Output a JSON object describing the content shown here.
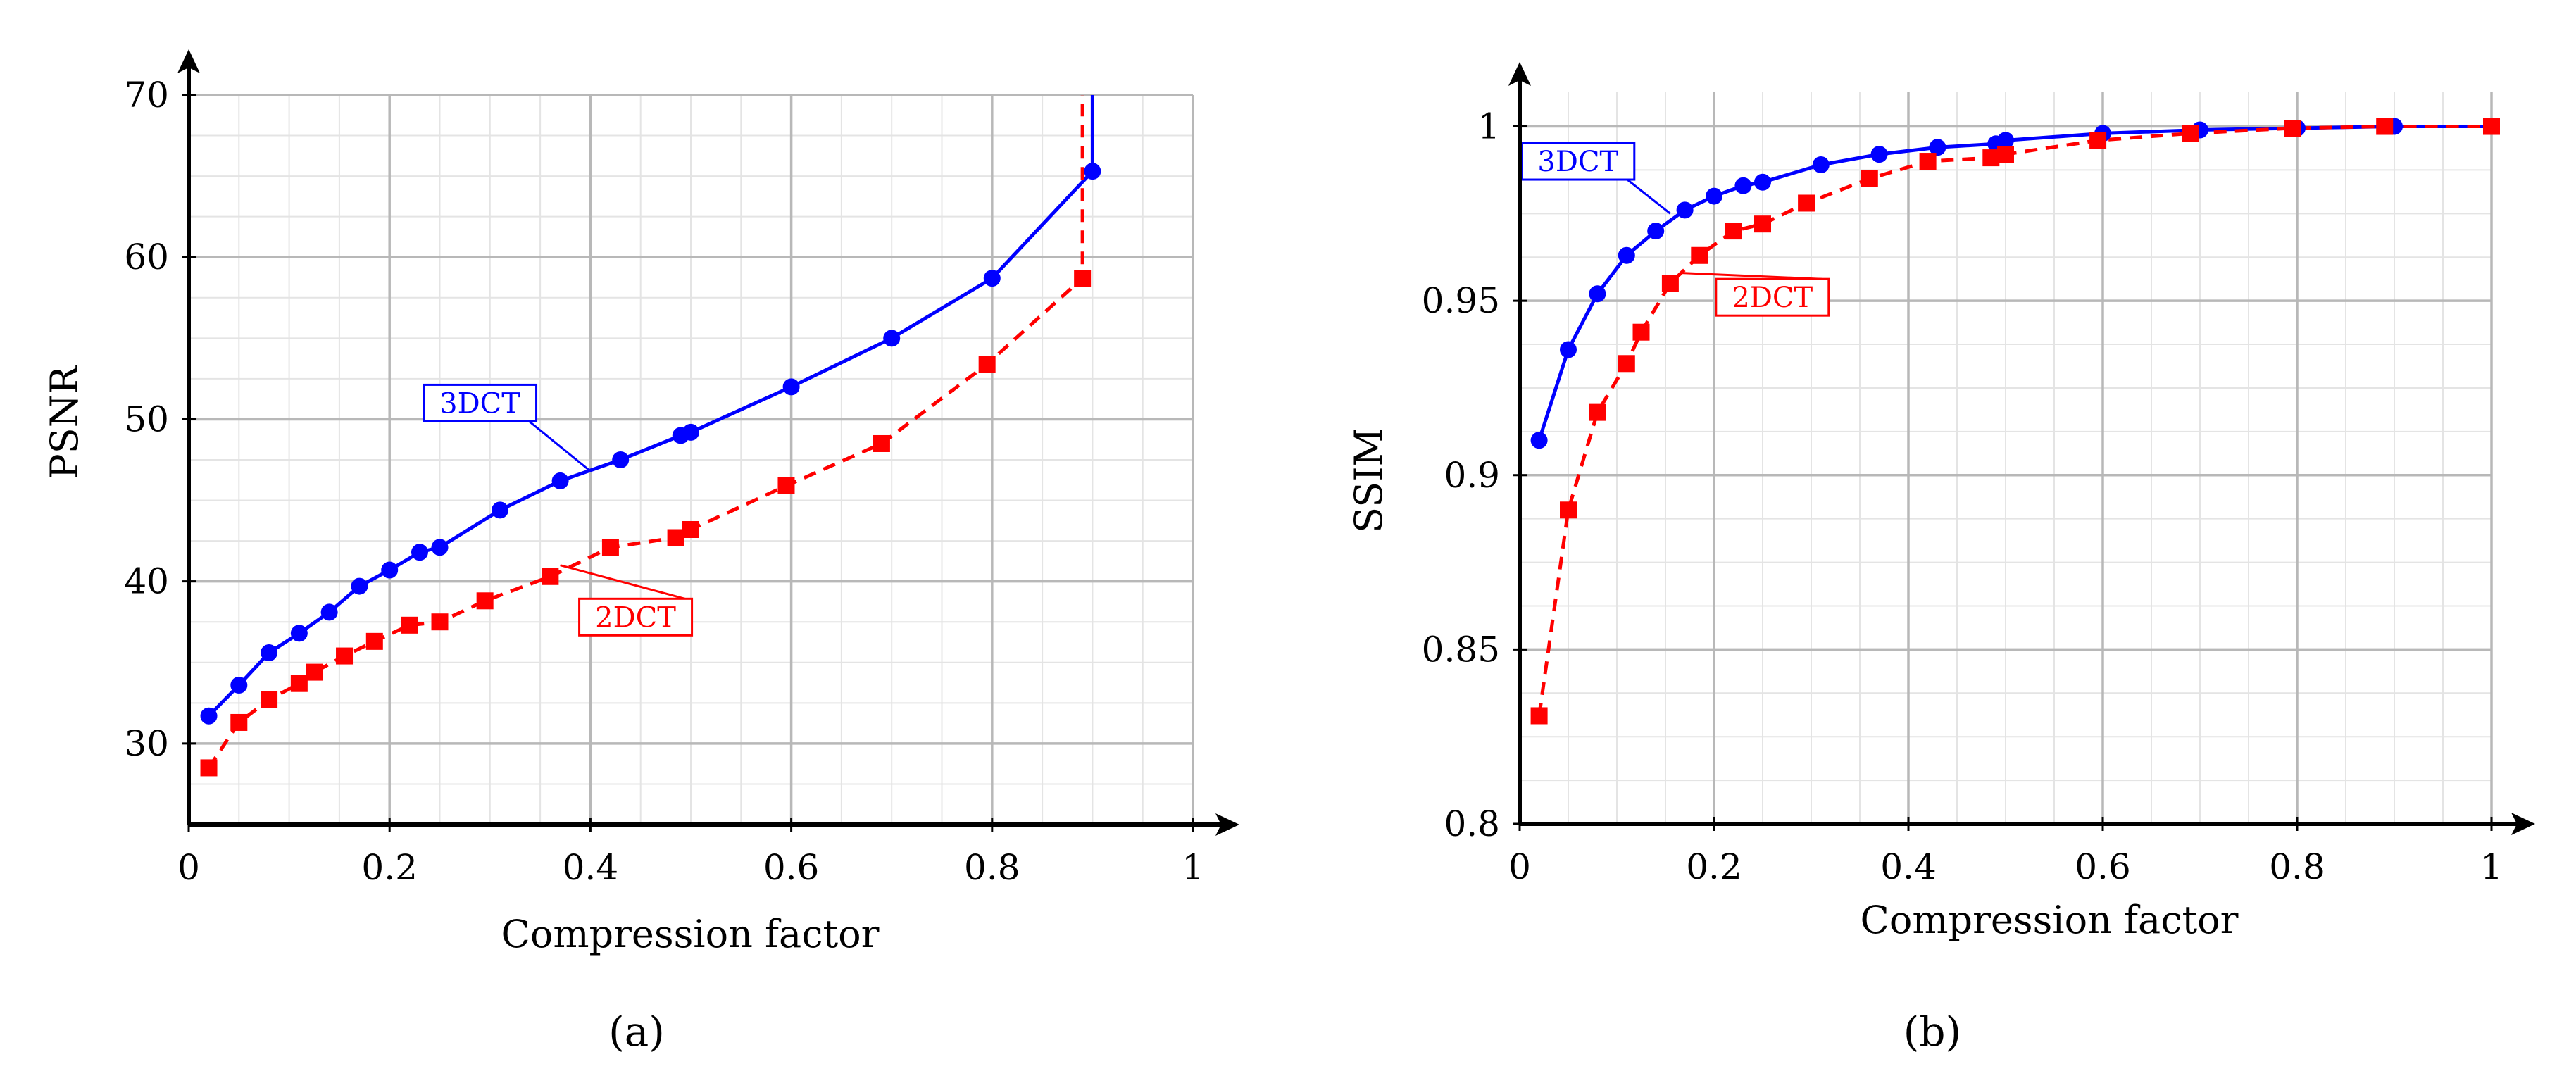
{
  "chart_data": [
    {
      "panel": "a",
      "type": "line",
      "panel_label": "(a)",
      "xlabel": "Compression factor",
      "ylabel": "PSNR",
      "xlim": [
        0,
        1
      ],
      "ylim": [
        25,
        70
      ],
      "xticks": [
        0,
        0.2,
        0.4,
        0.6,
        0.8,
        1
      ],
      "xtick_labels": [
        "0",
        "0.2",
        "0.4",
        "0.6",
        "0.8",
        "1"
      ],
      "yticks": [
        30,
        40,
        50,
        60,
        70
      ],
      "ytick_labels": [
        "30",
        "40",
        "50",
        "60",
        "70"
      ],
      "grid": true,
      "series": [
        {
          "name": "3DCT",
          "color": "#0000ff",
          "line_style": "solid",
          "marker": "circle",
          "x": [
            0.02,
            0.05,
            0.08,
            0.11,
            0.14,
            0.17,
            0.2,
            0.23,
            0.25,
            0.31,
            0.37,
            0.43,
            0.49,
            0.5,
            0.6,
            0.7,
            0.8,
            0.9
          ],
          "y": [
            31.7,
            33.6,
            35.6,
            36.8,
            38.1,
            39.7,
            40.7,
            41.8,
            42.1,
            44.4,
            46.2,
            47.5,
            49.0,
            49.2,
            52.0,
            55.0,
            58.7,
            65.3
          ],
          "tail": {
            "x": [
              0.9,
              0.9
            ],
            "y": [
              65.3,
              70
            ]
          }
        },
        {
          "name": "2DCT",
          "color": "#ff0000",
          "line_style": "dashed",
          "marker": "square",
          "x": [
            0.02,
            0.05,
            0.08,
            0.11,
            0.125,
            0.155,
            0.185,
            0.22,
            0.25,
            0.295,
            0.36,
            0.42,
            0.485,
            0.5,
            0.595,
            0.69,
            0.795,
            0.89
          ],
          "y": [
            28.5,
            31.3,
            32.7,
            33.7,
            34.4,
            35.4,
            36.3,
            37.3,
            37.5,
            38.8,
            40.3,
            42.1,
            42.7,
            43.2,
            45.9,
            48.5,
            53.4,
            58.7
          ],
          "tail": {
            "x": [
              0.89,
              0.89
            ],
            "y": [
              58.7,
              70
            ]
          }
        }
      ],
      "annotations": [
        {
          "text": "3DCT",
          "series": "3DCT",
          "anchor_x": 0.4,
          "anchor_y": 46.8,
          "label_x": 0.29,
          "label_y": 51.0
        },
        {
          "text": "2DCT",
          "series": "2DCT",
          "anchor_x": 0.37,
          "anchor_y": 41.0,
          "label_x": 0.445,
          "label_y": 37.8
        }
      ]
    },
    {
      "panel": "b",
      "type": "line",
      "panel_label": "(b)",
      "xlabel": "Compression factor",
      "ylabel": "SSIM",
      "xlim": [
        0,
        1
      ],
      "ylim": [
        0.8,
        1.01
      ],
      "xticks": [
        0,
        0.2,
        0.4,
        0.6,
        0.8,
        1
      ],
      "xtick_labels": [
        "0",
        "0.2",
        "0.4",
        "0.6",
        "0.8",
        "1"
      ],
      "yticks": [
        0.8,
        0.85,
        0.9,
        0.95,
        1
      ],
      "ytick_labels": [
        "0.8",
        "0.85",
        "0.9",
        "0.95",
        "1"
      ],
      "grid": true,
      "series": [
        {
          "name": "3DCT",
          "color": "#0000ff",
          "line_style": "solid",
          "marker": "circle",
          "x": [
            0.02,
            0.05,
            0.08,
            0.11,
            0.14,
            0.17,
            0.2,
            0.23,
            0.25,
            0.31,
            0.37,
            0.43,
            0.49,
            0.5,
            0.6,
            0.7,
            0.8,
            0.9,
            1.0
          ],
          "y": [
            0.91,
            0.936,
            0.952,
            0.963,
            0.97,
            0.976,
            0.98,
            0.983,
            0.984,
            0.989,
            0.992,
            0.994,
            0.995,
            0.996,
            0.998,
            0.999,
            0.9995,
            1.0,
            1.0
          ]
        },
        {
          "name": "2DCT",
          "color": "#ff0000",
          "line_style": "dashed",
          "marker": "square",
          "x": [
            0.02,
            0.05,
            0.08,
            0.11,
            0.125,
            0.155,
            0.185,
            0.22,
            0.25,
            0.295,
            0.36,
            0.42,
            0.485,
            0.5,
            0.595,
            0.69,
            0.795,
            0.89,
            1.0
          ],
          "y": [
            0.831,
            0.89,
            0.918,
            0.932,
            0.941,
            0.955,
            0.963,
            0.97,
            0.972,
            0.978,
            0.985,
            0.99,
            0.991,
            0.992,
            0.996,
            0.998,
            0.9995,
            1.0,
            1.0
          ]
        }
      ],
      "annotations": [
        {
          "text": "3DCT",
          "series": "3DCT",
          "anchor_x": 0.155,
          "anchor_y": 0.975,
          "label_x": 0.06,
          "label_y": 0.99
        },
        {
          "text": "2DCT",
          "series": "2DCT",
          "anchor_x": 0.165,
          "anchor_y": 0.958,
          "label_x": 0.26,
          "label_y": 0.951
        }
      ]
    }
  ]
}
